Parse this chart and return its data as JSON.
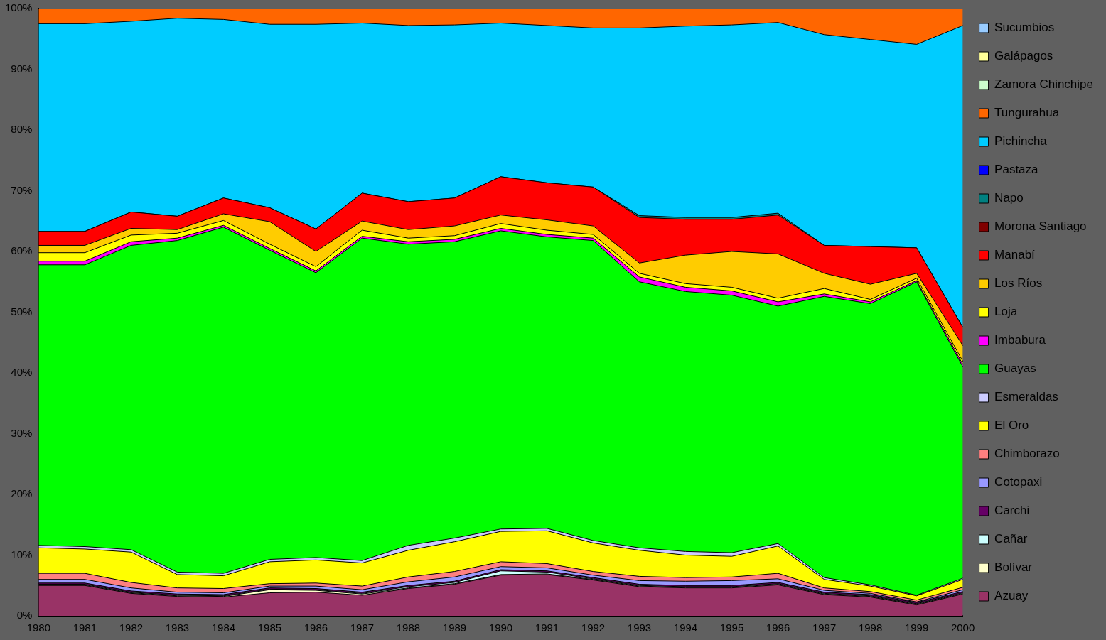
{
  "chart_data": {
    "type": "area",
    "stacked": true,
    "legend": "right",
    "marker": "none",
    "grid": false,
    "categories": [
      "1980",
      "1981",
      "1982",
      "1983",
      "1984",
      "1985",
      "1986",
      "1987",
      "1988",
      "1989",
      "1990",
      "1991",
      "1992",
      "1993",
      "1994",
      "1995",
      "1996",
      "1997",
      "1998",
      "1999",
      "2000"
    ],
    "ylim": [
      0,
      100
    ],
    "yticks": [
      {
        "value": 0,
        "label": "0%"
      },
      {
        "value": 10,
        "label": "10%"
      },
      {
        "value": 20,
        "label": "20%"
      },
      {
        "value": 30,
        "label": "30%"
      },
      {
        "value": 40,
        "label": "40%"
      },
      {
        "value": 50,
        "label": "50%"
      },
      {
        "value": 60,
        "label": "60%"
      },
      {
        "value": 70,
        "label": "70%"
      },
      {
        "value": 80,
        "label": "80%"
      },
      {
        "value": 90,
        "label": "90%"
      },
      {
        "value": 100,
        "label": "100%"
      }
    ],
    "series": [
      {
        "name": "Azuay",
        "color": "#993366",
        "values": [
          5.0,
          5.0,
          3.7,
          3.2,
          3.1,
          3.8,
          3.9,
          3.4,
          4.5,
          5.2,
          6.7,
          6.8,
          5.9,
          4.8,
          4.6,
          4.6,
          5.1,
          3.5,
          3.1,
          1.8,
          3.6
        ]
      },
      {
        "name": "Bolívar",
        "color": "#ffffcc",
        "values": [
          0.1,
          0.1,
          0.1,
          0.1,
          0.1,
          0.5,
          0.3,
          0.2,
          0.1,
          0.1,
          0.1,
          0.1,
          0.1,
          0.1,
          0.1,
          0.1,
          0.1,
          0.1,
          0.1,
          0.1,
          0.1
        ]
      },
      {
        "name": "Cañar",
        "color": "#ccffff",
        "values": [
          0.1,
          0.1,
          0.1,
          0.1,
          0.1,
          0.1,
          0.1,
          0.1,
          0.2,
          0.2,
          0.6,
          0.3,
          0.1,
          0.1,
          0.1,
          0.1,
          0.1,
          0.1,
          0.1,
          0.1,
          0.1
        ]
      },
      {
        "name": "Carchi",
        "color": "#660066",
        "values": [
          0.2,
          0.2,
          0.2,
          0.2,
          0.2,
          0.2,
          0.2,
          0.2,
          0.2,
          0.2,
          0.2,
          0.2,
          0.2,
          0.2,
          0.2,
          0.2,
          0.2,
          0.2,
          0.2,
          0.2,
          0.2
        ]
      },
      {
        "name": "Cotopaxi",
        "color": "#9999ff",
        "values": [
          0.6,
          0.6,
          0.5,
          0.3,
          0.3,
          0.3,
          0.4,
          0.4,
          0.6,
          0.7,
          0.5,
          0.5,
          0.4,
          0.6,
          0.7,
          0.8,
          0.6,
          0.3,
          0.2,
          0.1,
          0.3
        ]
      },
      {
        "name": "Chimborazo",
        "color": "#ff8080",
        "values": [
          1.0,
          1.0,
          0.9,
          0.7,
          0.7,
          0.4,
          0.5,
          0.6,
          0.8,
          0.9,
          0.8,
          0.7,
          0.6,
          0.7,
          0.6,
          0.6,
          0.9,
          0.4,
          0.3,
          0.3,
          0.4
        ]
      },
      {
        "name": "El Oro",
        "color": "#ffff00",
        "values": [
          4.2,
          4.0,
          5.0,
          2.2,
          2.1,
          3.6,
          3.8,
          3.8,
          4.4,
          4.9,
          5.0,
          5.4,
          4.7,
          4.3,
          3.7,
          3.4,
          4.5,
          1.4,
          0.9,
          0.7,
          1.3
        ]
      },
      {
        "name": "Esmeraldas",
        "color": "#ccccff",
        "values": [
          0.4,
          0.4,
          0.4,
          0.4,
          0.4,
          0.4,
          0.4,
          0.4,
          0.8,
          0.6,
          0.4,
          0.4,
          0.4,
          0.4,
          0.6,
          0.6,
          0.4,
          0.3,
          0.2,
          0.1,
          0.2
        ]
      },
      {
        "name": "Guayas",
        "color": "#00ff00",
        "values": [
          46.2,
          46.4,
          50.1,
          54.6,
          57.0,
          50.9,
          46.9,
          53.1,
          49.6,
          48.8,
          49.1,
          48.0,
          49.4,
          43.8,
          42.8,
          42.4,
          39.1,
          46.3,
          46.3,
          51.6,
          34.8
        ]
      },
      {
        "name": "Imbabura",
        "color": "#ff00ff",
        "values": [
          0.6,
          0.6,
          0.6,
          0.4,
          0.3,
          0.3,
          0.3,
          0.3,
          0.4,
          0.4,
          0.4,
          0.4,
          0.4,
          0.8,
          0.7,
          0.7,
          0.7,
          0.4,
          0.3,
          0.2,
          0.4
        ]
      },
      {
        "name": "Loja",
        "color": "#ffff00",
        "values": [
          1.4,
          1.4,
          1.1,
          0.8,
          0.8,
          0.7,
          0.7,
          1.0,
          0.6,
          0.6,
          0.8,
          0.7,
          0.6,
          0.6,
          0.6,
          0.6,
          0.6,
          0.9,
          0.4,
          0.4,
          0.5
        ]
      },
      {
        "name": "Los Ríos",
        "color": "#ffcc00",
        "values": [
          1.2,
          1.2,
          1.1,
          0.6,
          1.1,
          3.7,
          2.5,
          1.5,
          1.4,
          1.6,
          1.4,
          1.7,
          1.4,
          1.7,
          4.7,
          5.9,
          7.3,
          2.5,
          2.5,
          0.8,
          2.6
        ]
      },
      {
        "name": "Manabí",
        "color": "#ff0000",
        "values": [
          2.3,
          2.3,
          2.7,
          2.2,
          2.6,
          2.3,
          3.7,
          4.6,
          4.6,
          4.6,
          6.3,
          6.1,
          6.4,
          7.5,
          5.9,
          5.3,
          6.4,
          4.6,
          6.2,
          4.2,
          3.0
        ]
      },
      {
        "name": "Morona Santiago",
        "color": "#800000",
        "values": [
          null,
          null,
          null,
          null,
          null,
          null,
          null,
          null,
          null,
          null,
          null,
          null,
          null,
          null,
          null,
          null,
          null,
          null,
          null,
          null,
          null
        ]
      },
      {
        "name": "Napo",
        "color": "#008080",
        "values": [
          0,
          0,
          0,
          0,
          0,
          0,
          0,
          0,
          0,
          0,
          0,
          0,
          0,
          0.3,
          0.3,
          0.3,
          0.3,
          0,
          0,
          0,
          0
        ]
      },
      {
        "name": "Pastaza",
        "color": "#0000ff",
        "values": [
          null,
          null,
          null,
          null,
          null,
          null,
          null,
          null,
          null,
          null,
          null,
          null,
          null,
          null,
          null,
          null,
          null,
          null,
          null,
          null,
          null
        ]
      },
      {
        "name": "Pichincha",
        "color": "#00ccff",
        "values": [
          34.2,
          34.2,
          31.4,
          32.6,
          29.4,
          30.2,
          33.7,
          28.0,
          29.0,
          28.5,
          25.3,
          25.9,
          26.2,
          30.9,
          31.5,
          31.7,
          31.4,
          34.7,
          34.1,
          33.5,
          49.7
        ]
      },
      {
        "name": "Tungurahua",
        "color": "#ff6600",
        "values": [
          2.5,
          2.5,
          2.1,
          1.6,
          1.8,
          2.6,
          2.6,
          2.4,
          2.8,
          2.7,
          2.4,
          2.8,
          3.2,
          3.2,
          2.9,
          2.7,
          2.3,
          4.3,
          5.1,
          5.9,
          2.8
        ]
      },
      {
        "name": "Zamora Chinchipe",
        "color": "#ccffcc",
        "values": [
          null,
          null,
          null,
          null,
          null,
          null,
          null,
          null,
          null,
          null,
          null,
          null,
          null,
          null,
          null,
          null,
          null,
          null,
          null,
          null,
          null
        ]
      },
      {
        "name": "Galápagos",
        "color": "#ffff99",
        "values": [
          null,
          null,
          null,
          null,
          null,
          null,
          null,
          null,
          null,
          null,
          null,
          null,
          null,
          null,
          null,
          null,
          null,
          null,
          null,
          null,
          null
        ]
      },
      {
        "name": "Sucumbios",
        "color": "#99ccff",
        "values": [
          null,
          null,
          null,
          null,
          null,
          null,
          null,
          null,
          null,
          null,
          null,
          null,
          null,
          null,
          null,
          null,
          null,
          null,
          null,
          null,
          null
        ]
      }
    ]
  }
}
